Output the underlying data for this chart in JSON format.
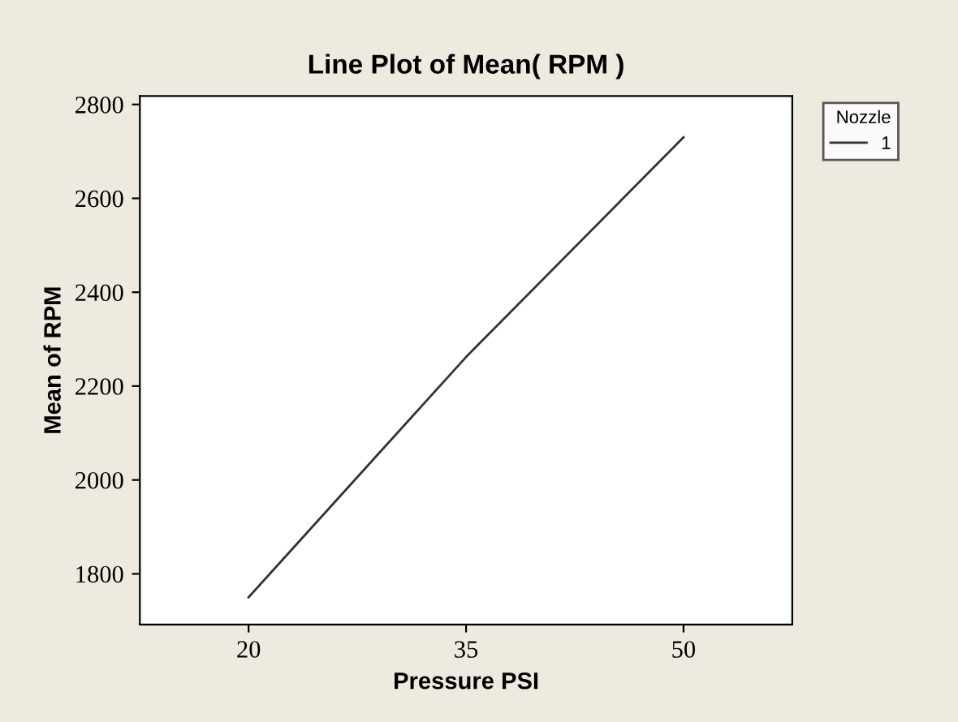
{
  "chart_data": {
    "type": "line",
    "title": "Line Plot of Mean( RPM )",
    "xlabel": "Pressure PSI",
    "ylabel": "Mean of RPM",
    "legend_title": "Nozzle",
    "x": [
      20,
      35,
      50
    ],
    "series": [
      {
        "name": "1",
        "color": "#333333",
        "values": [
          1750,
          2262,
          2730
        ]
      }
    ],
    "xlim": [
      12.5,
      57.5
    ],
    "xticks": [
      20,
      35,
      50
    ],
    "ylim": [
      1692,
      2818
    ],
    "yticks": [
      1800,
      2000,
      2200,
      2400,
      2600,
      2800
    ],
    "grid": false,
    "legend": "top right",
    "marker": "none",
    "line_style": "solid"
  }
}
